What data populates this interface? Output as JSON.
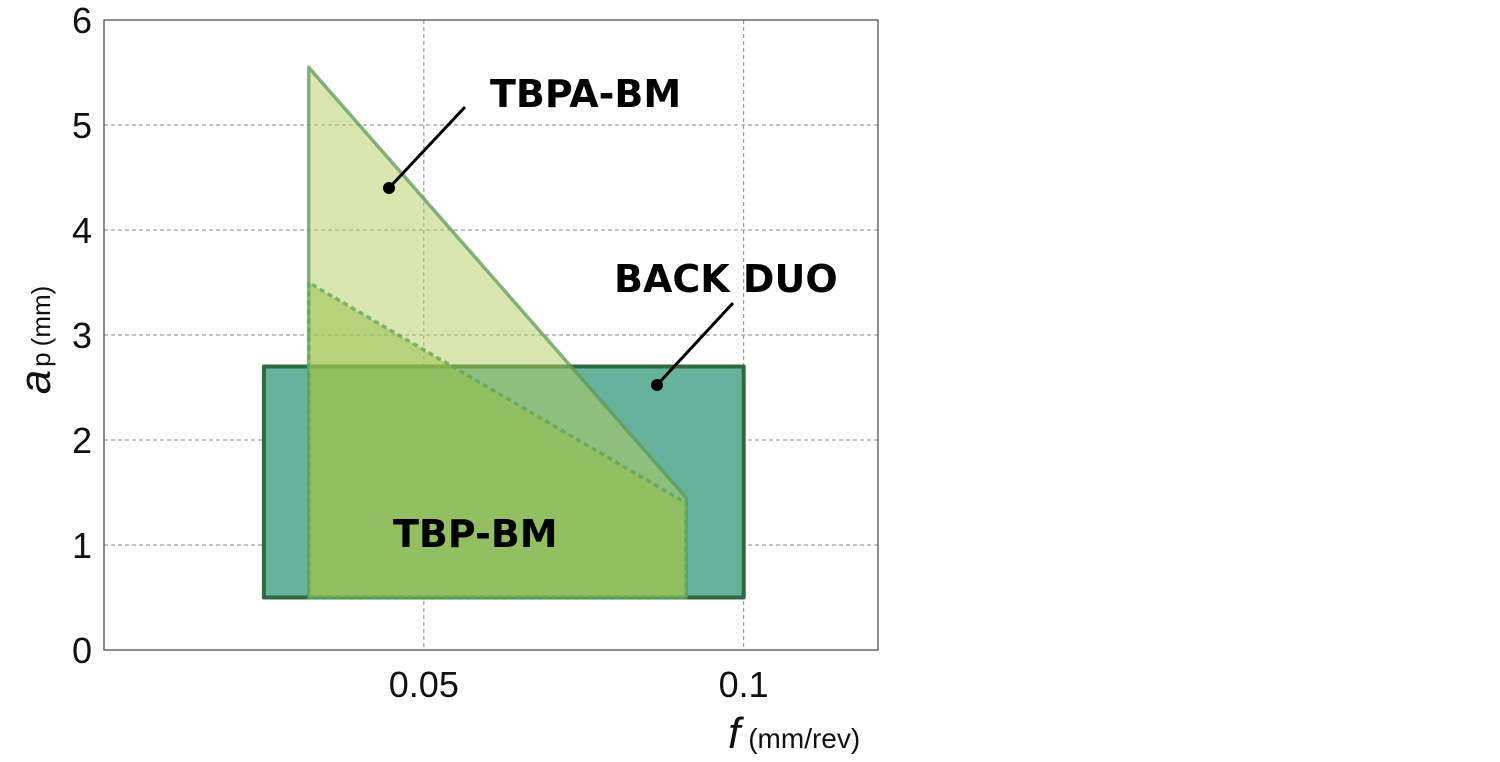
{
  "chart_data": {
    "type": "area",
    "xlabel": {
      "symbol": "f",
      "unit": "(mm/rev)"
    },
    "ylabel": {
      "symbol": "a",
      "subscript": "p",
      "unit": "(mm)"
    },
    "xlim": [
      0,
      0.121
    ],
    "ylim": [
      0,
      6
    ],
    "x_ticks": [
      {
        "value": 0.05,
        "label": "0.05"
      },
      {
        "value": 0.1,
        "label": "0.1"
      }
    ],
    "y_ticks": [
      {
        "value": 0,
        "label": "0"
      },
      {
        "value": 1,
        "label": "1"
      },
      {
        "value": 2,
        "label": "2"
      },
      {
        "value": 3,
        "label": "3"
      },
      {
        "value": 4,
        "label": "4"
      },
      {
        "value": 5,
        "label": "5"
      },
      {
        "value": 6,
        "label": "6"
      }
    ],
    "grid": true,
    "series": [
      {
        "name": "BACK DUO",
        "fill": "#66b29a",
        "stroke": "#2e6b3e",
        "dashed": false,
        "points": [
          [
            0.025,
            0.5
          ],
          [
            0.1,
            0.5
          ],
          [
            0.1,
            2.7
          ],
          [
            0.025,
            2.7
          ]
        ]
      },
      {
        "name": "TBPA-BM",
        "fill": "#b3cd61",
        "stroke": "#5f9a5a",
        "dashed": false,
        "points": [
          [
            0.032,
            0.5
          ],
          [
            0.091,
            0.5
          ],
          [
            0.091,
            1.45
          ],
          [
            0.032,
            5.55
          ]
        ]
      },
      {
        "name": "TBP-BM",
        "fill": "#96be46",
        "stroke": "#5aa55a",
        "dashed": true,
        "points": [
          [
            0.032,
            0.5
          ],
          [
            0.091,
            0.5
          ],
          [
            0.091,
            1.4
          ],
          [
            0.032,
            3.5
          ]
        ]
      }
    ]
  }
}
